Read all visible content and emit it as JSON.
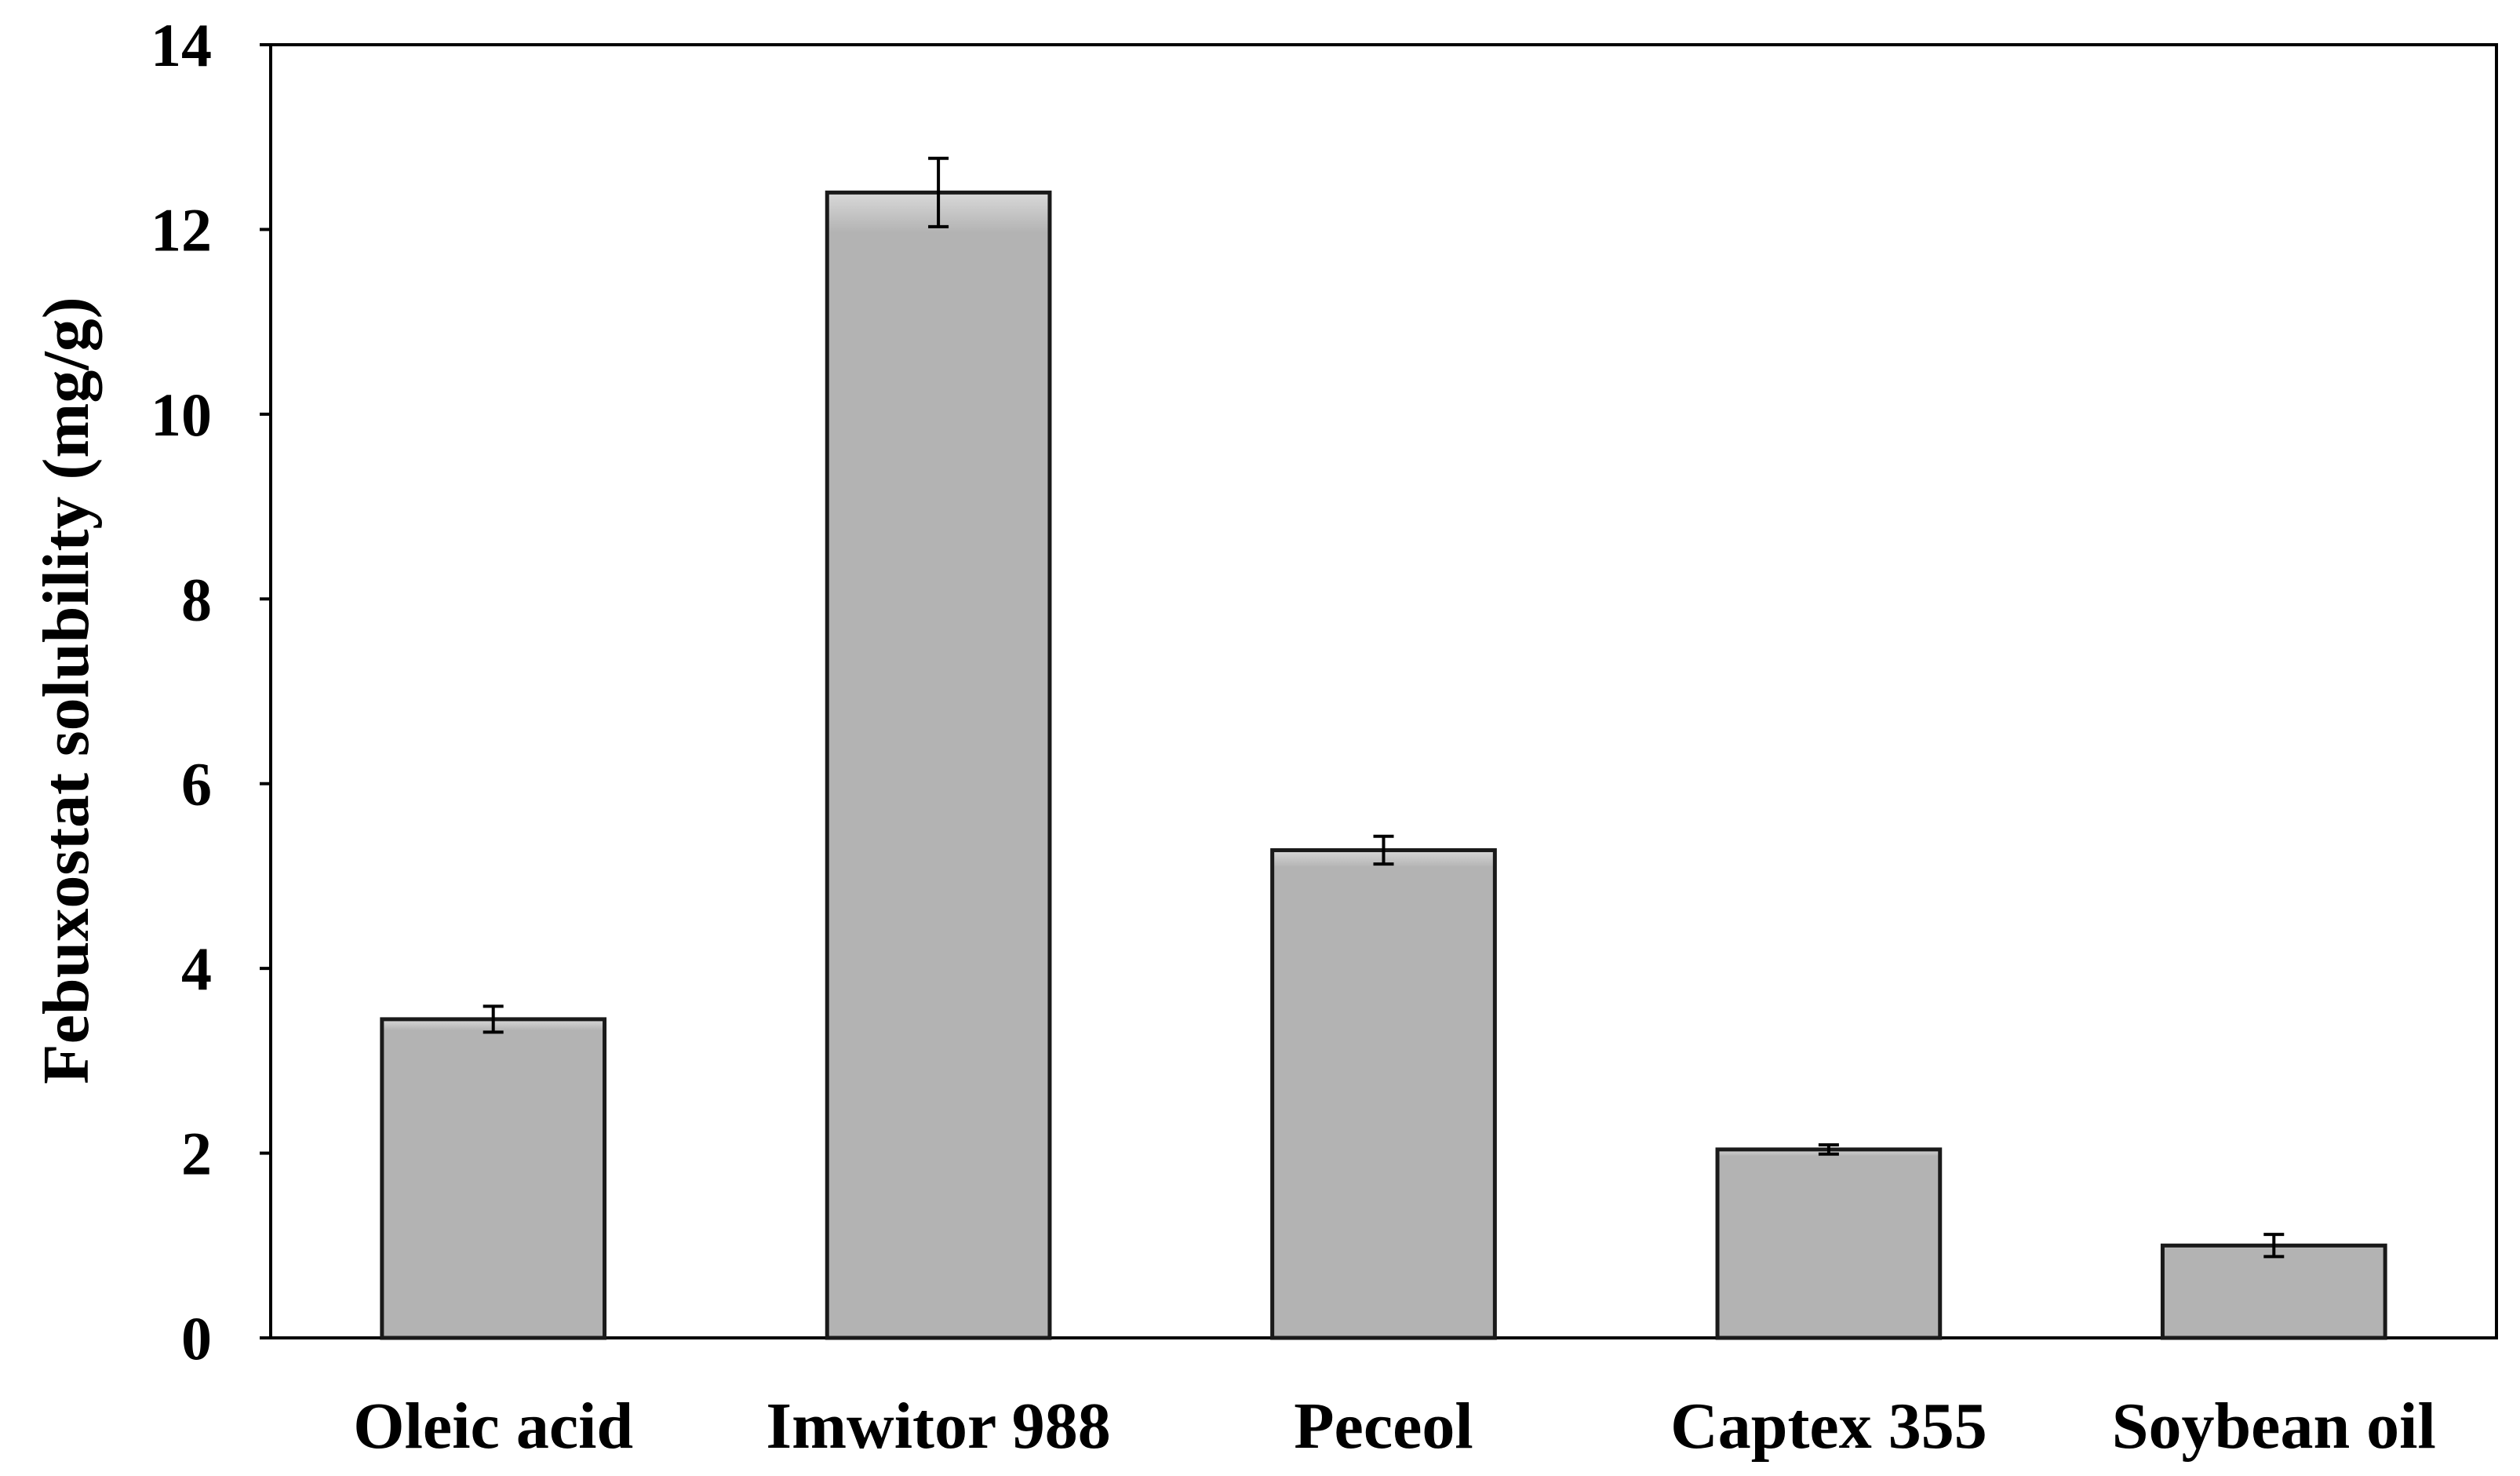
{
  "chart_data": {
    "type": "bar",
    "title": "",
    "xlabel": "",
    "ylabel": "Febuxostat solubility (mg/g)",
    "categories": [
      "Oleic acid",
      "Imwitor 988",
      "Peceol",
      "Captex 355",
      "Soybean oil"
    ],
    "values": [
      3.45,
      12.4,
      5.28,
      2.04,
      1.0
    ],
    "errors": [
      0.14,
      0.37,
      0.15,
      0.05,
      0.12
    ],
    "ylim": [
      0,
      14
    ],
    "yticks": [
      "0",
      "2",
      "4",
      "6",
      "8",
      "10",
      "12",
      "14"
    ],
    "grid": false,
    "legend": "none",
    "colors": {
      "bar_fill": "#b3b3b3",
      "bar_highlight": "#d9d9d9",
      "bar_edge": "#1a1a1a",
      "axis": "#000000"
    }
  }
}
